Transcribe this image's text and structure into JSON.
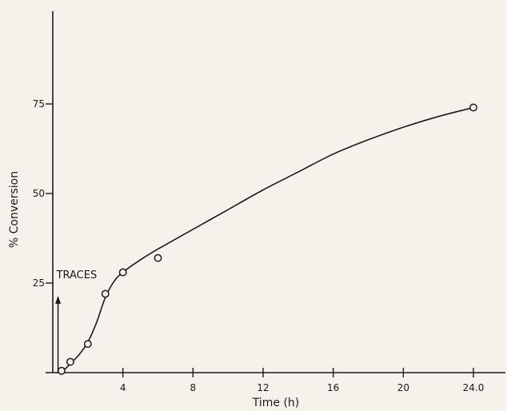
{
  "chart_data": {
    "type": "scatter",
    "title": "",
    "xlabel": "Time (h)",
    "ylabel": "% Conversion",
    "xlim": [
      0,
      25.5
    ],
    "ylim": [
      0,
      90
    ],
    "x_ticks": [
      {
        "value": 4,
        "label": "4"
      },
      {
        "value": 8,
        "label": "8"
      },
      {
        "value": 12,
        "label": "12"
      },
      {
        "value": 16,
        "label": "16"
      },
      {
        "value": 20,
        "label": "20"
      },
      {
        "value": 24,
        "label": "24.0"
      }
    ],
    "y_ticks": [
      {
        "value": 25,
        "label": "25"
      },
      {
        "value": 50,
        "label": "50"
      },
      {
        "value": 75,
        "label": "75"
      }
    ],
    "grid": false,
    "series": [
      {
        "points": [
          {
            "x": 0.5,
            "y": 0.5
          },
          {
            "x": 1.0,
            "y": 3
          },
          {
            "x": 2.0,
            "y": 8
          },
          {
            "x": 3.0,
            "y": 22
          },
          {
            "x": 4.0,
            "y": 28
          },
          {
            "x": 6.0,
            "y": 32
          },
          {
            "x": 24.0,
            "y": 74
          }
        ],
        "marker": "open-circle",
        "fit_curve": [
          {
            "x": 0.2,
            "y": 0
          },
          {
            "x": 0.6,
            "y": 0.6
          },
          {
            "x": 1.0,
            "y": 2.5
          },
          {
            "x": 1.5,
            "y": 5.0
          },
          {
            "x": 2.0,
            "y": 8.5
          },
          {
            "x": 2.5,
            "y": 14
          },
          {
            "x": 3.0,
            "y": 21
          },
          {
            "x": 3.5,
            "y": 25.5
          },
          {
            "x": 4.0,
            "y": 28
          },
          {
            "x": 5.0,
            "y": 31.5
          },
          {
            "x": 6.0,
            "y": 34.5
          },
          {
            "x": 8.0,
            "y": 40
          },
          {
            "x": 10.0,
            "y": 45.5
          },
          {
            "x": 12.0,
            "y": 51
          },
          {
            "x": 14.0,
            "y": 56
          },
          {
            "x": 16.0,
            "y": 61
          },
          {
            "x": 18.0,
            "y": 65
          },
          {
            "x": 20.0,
            "y": 68.5
          },
          {
            "x": 22.0,
            "y": 71.5
          },
          {
            "x": 24.0,
            "y": 74
          }
        ]
      }
    ],
    "annotations": [
      {
        "text": "TRACES",
        "x": 0.3,
        "y": 21,
        "arrow": "up"
      }
    ],
    "colors": {
      "ink": "#1a1a1a",
      "paper": "#f4f2ea"
    }
  }
}
